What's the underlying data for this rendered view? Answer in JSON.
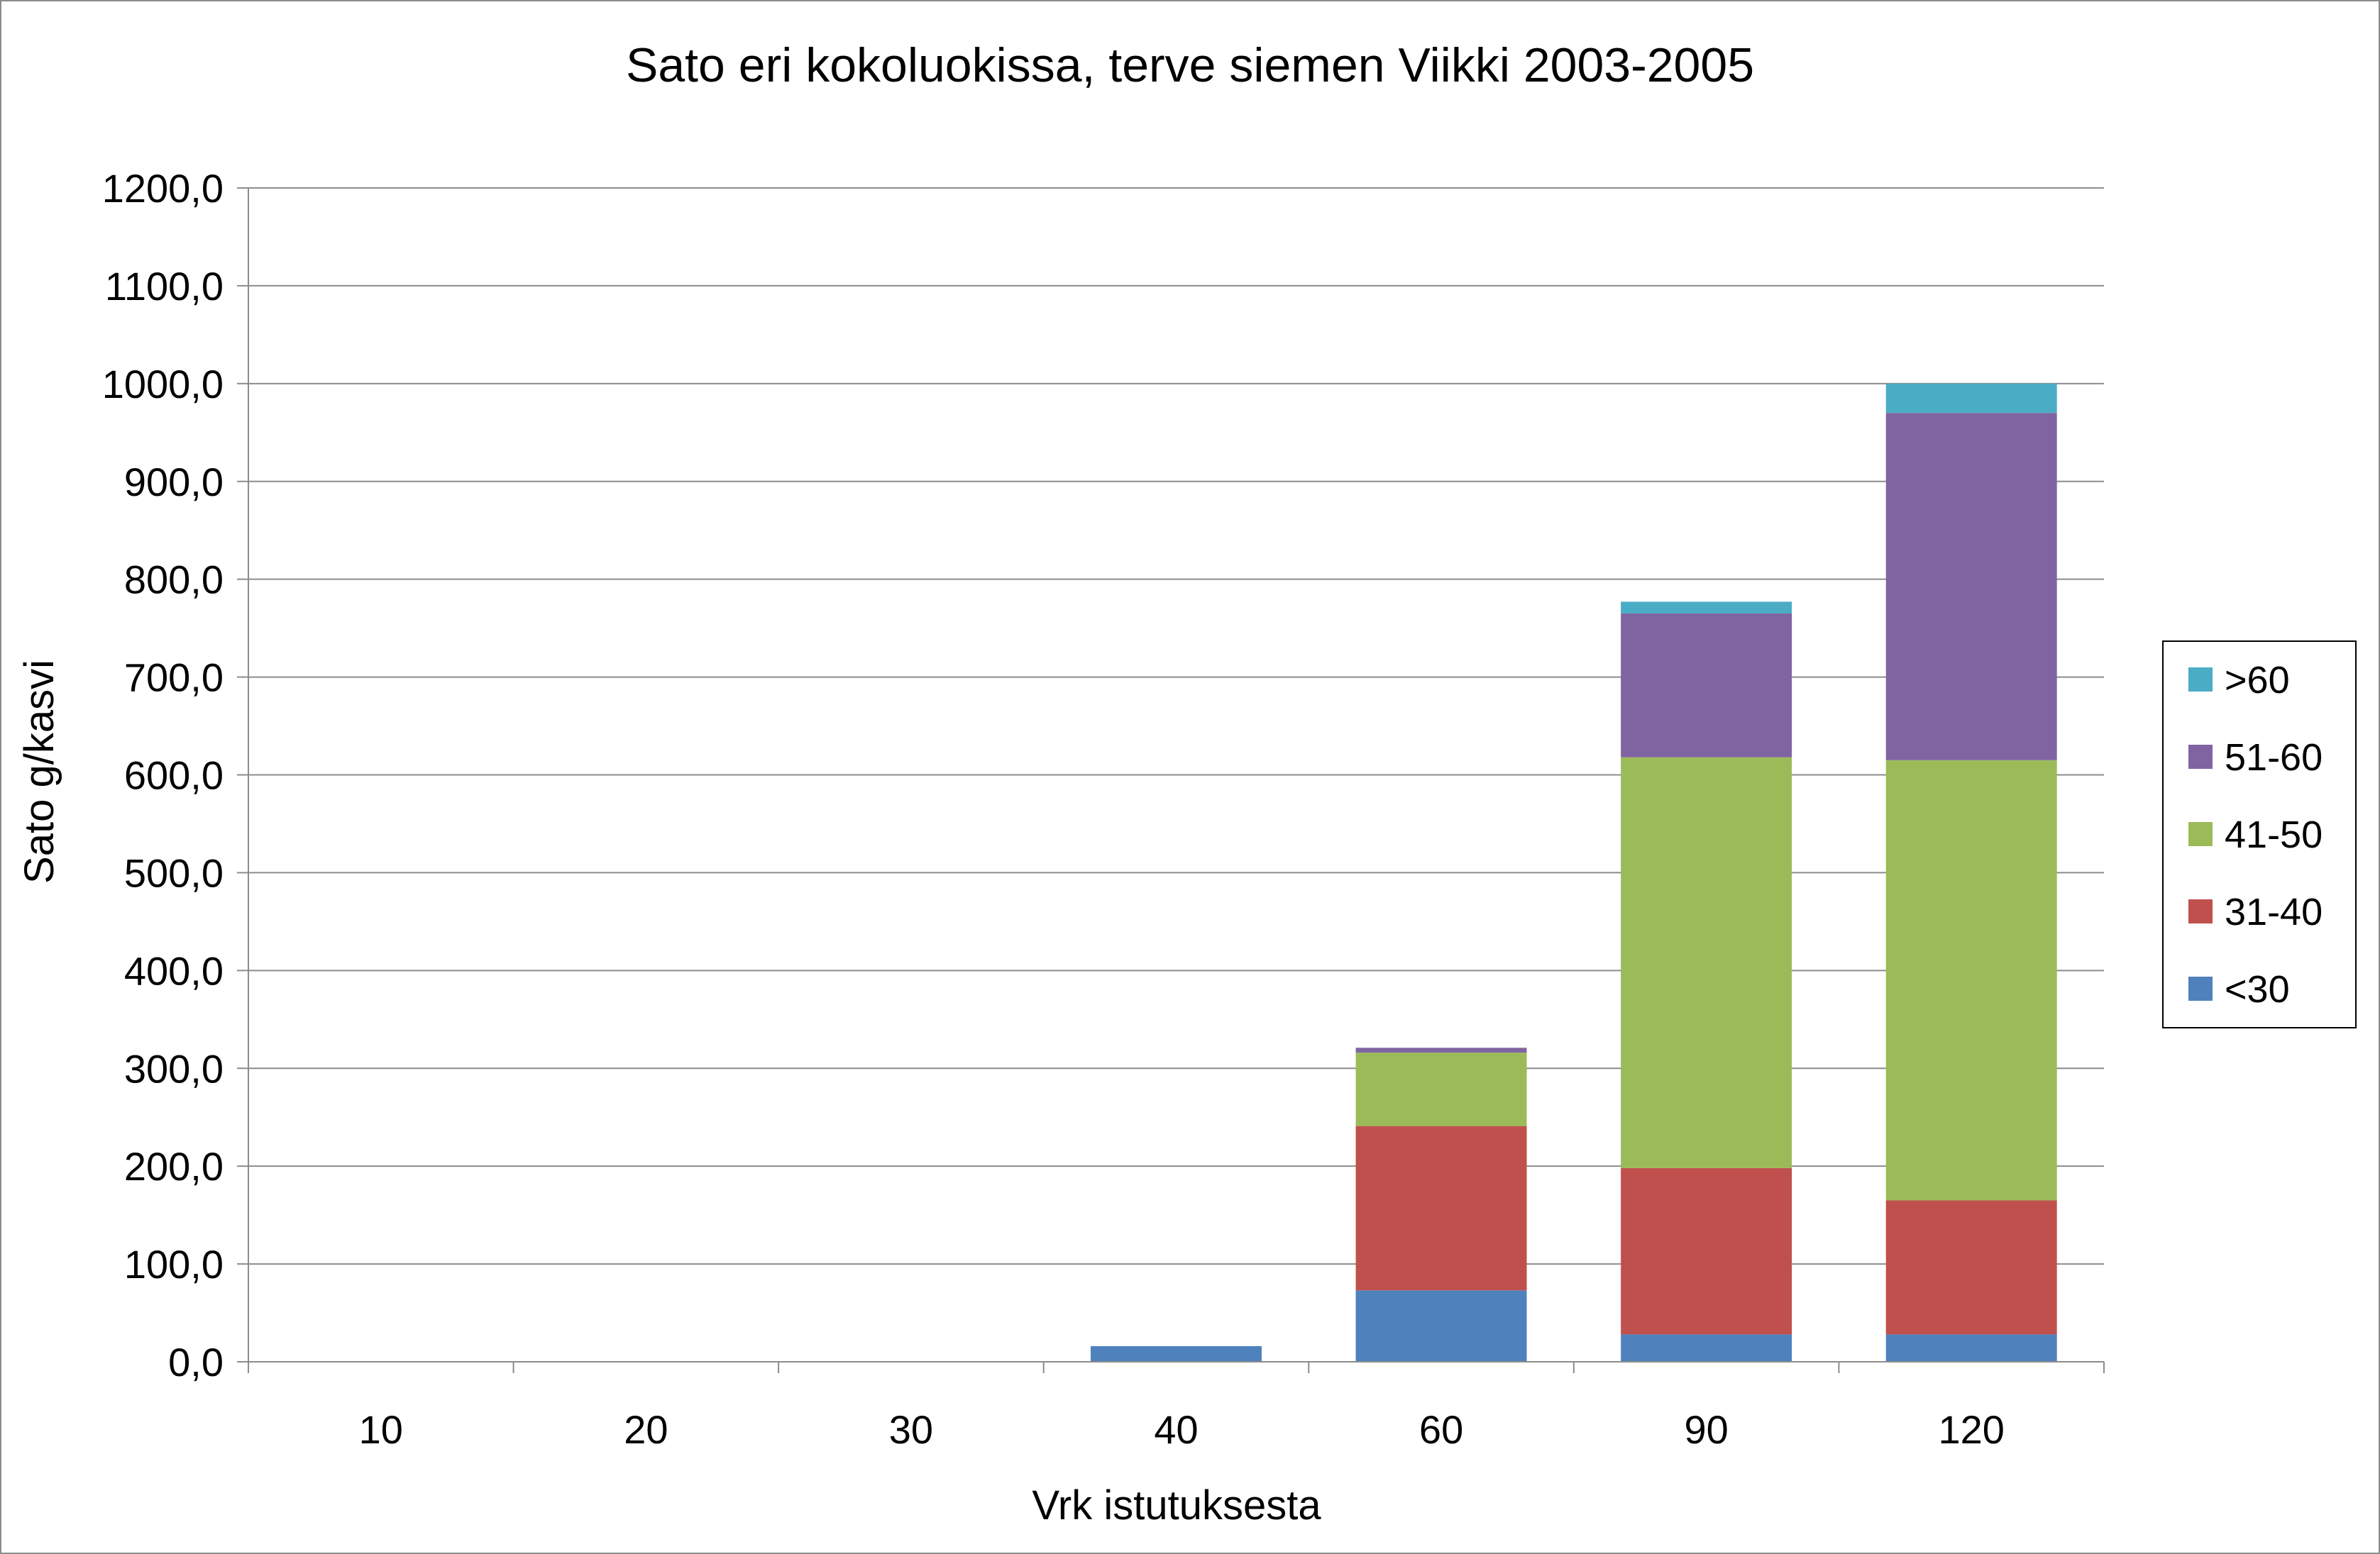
{
  "chart_data": {
    "type": "bar",
    "stacked": true,
    "title": "Sato eri kokoluokissa, terve siemen Viikki 2003-2005",
    "xlabel": "Vrk istutuksesta",
    "ylabel": "Sato g/kasvi",
    "ylim": [
      0,
      1200
    ],
    "y_ticks": [
      "0,0",
      "100,0",
      "200,0",
      "300,0",
      "400,0",
      "500,0",
      "600,0",
      "700,0",
      "800,0",
      "900,0",
      "1000,0",
      "1100,0",
      "1200,0"
    ],
    "y_tick_values": [
      0,
      100,
      200,
      300,
      400,
      500,
      600,
      700,
      800,
      900,
      1000,
      1100,
      1200
    ],
    "grid": true,
    "legend_position": "right",
    "categories": [
      "10",
      "20",
      "30",
      "40",
      "60",
      "90",
      "120"
    ],
    "series": [
      {
        "name": "<30",
        "color": "#4f81bd",
        "values": [
          0,
          0,
          0,
          16,
          73,
          28,
          28
        ]
      },
      {
        "name": "31-40",
        "color": "#c0504d",
        "values": [
          0,
          0,
          0,
          0,
          168,
          170,
          137
        ]
      },
      {
        "name": "41-50",
        "color": "#9bbb59",
        "values": [
          0,
          0,
          0,
          0,
          75,
          420,
          450
        ]
      },
      {
        "name": "51-60",
        "color": "#8064a2",
        "values": [
          0,
          0,
          0,
          0,
          5,
          147,
          355
        ]
      },
      {
        "name": ">60",
        "color": "#4bacc6",
        "values": [
          0,
          0,
          0,
          0,
          0,
          12,
          30
        ]
      }
    ]
  }
}
